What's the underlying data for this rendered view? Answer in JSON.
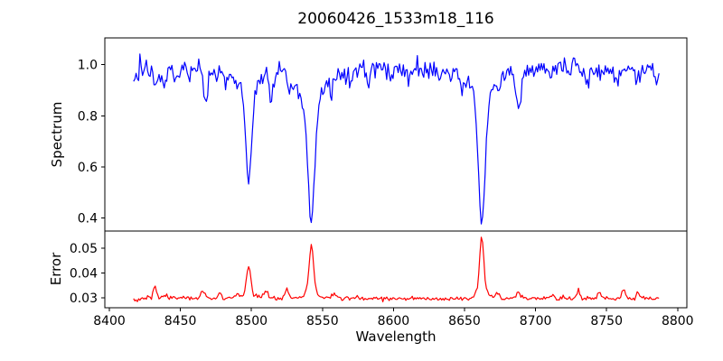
{
  "chart_data": {
    "type": "line",
    "title": "20060426_1533m18_116",
    "xlabel": "Wavelength",
    "xlim": [
      8396.8,
      8806.5
    ],
    "xticks": [
      8400,
      8450,
      8500,
      8550,
      8600,
      8650,
      8700,
      8750,
      8800
    ],
    "xtick_labels": [
      "8400",
      "8450",
      "8500",
      "8550",
      "8600",
      "8650",
      "8700",
      "8750",
      "8800"
    ],
    "x_range": [
      8417,
      8787.5
    ],
    "x_step": 0.9,
    "grid": false,
    "legend": "none",
    "panels": [
      {
        "name": "spectrum",
        "ylabel": "Spectrum",
        "color": "#0000ff",
        "ylim": [
          0.349,
          1.105
        ],
        "yticks": [
          0.4,
          0.6,
          0.8,
          1.0
        ],
        "ytick_labels": [
          "0.4",
          "0.6",
          "0.8",
          "1.0"
        ]
      },
      {
        "name": "error",
        "ylabel": "Error",
        "color": "#ff0000",
        "ylim": [
          0.026,
          0.0569
        ],
        "yticks": [
          0.03,
          0.04,
          0.05
        ],
        "ytick_labels": [
          "0.03",
          "0.04",
          "0.05"
        ]
      }
    ],
    "spectrum": {
      "continuum": 0.985,
      "noise_sigma": 0.02,
      "noise_seed": 20060426,
      "absorption_lines": [
        {
          "center": 8498.0,
          "flux_min": 0.56,
          "depth": 0.328,
          "width": 2.0,
          "wing_depth": 0.1,
          "wing_width": 7
        },
        {
          "center": 8542.1,
          "flux_min": 0.37,
          "depth": 0.492,
          "width": 2.3,
          "wing_depth": 0.12,
          "wing_width": 9
        },
        {
          "center": 8662.1,
          "flux_min": 0.38,
          "depth": 0.486,
          "width": 2.3,
          "wing_depth": 0.12,
          "wing_width": 9
        },
        {
          "center": 8418,
          "depth": 0.05,
          "width": 1.0
        },
        {
          "center": 8427,
          "depth": 0.04,
          "width": 1.2
        },
        {
          "center": 8433,
          "depth": 0.05,
          "width": 1.4
        },
        {
          "center": 8439,
          "depth": 0.06,
          "width": 1.6
        },
        {
          "center": 8447,
          "depth": 0.05,
          "width": 1.3
        },
        {
          "center": 8456,
          "depth": 0.04,
          "width": 1.2
        },
        {
          "center": 8468,
          "depth": 0.11,
          "width": 1.8
        },
        {
          "center": 8476,
          "depth": 0.05,
          "width": 1.3
        },
        {
          "center": 8482,
          "depth": 0.05,
          "width": 1.3
        },
        {
          "center": 8514,
          "depth": 0.09,
          "width": 1.7
        },
        {
          "center": 8527,
          "depth": 0.06,
          "width": 1.5
        },
        {
          "center": 8536,
          "depth": 0.04,
          "width": 1.2
        },
        {
          "center": 8556,
          "depth": 0.04,
          "width": 1.2
        },
        {
          "center": 8570,
          "depth": 0.04,
          "width": 1.3
        },
        {
          "center": 8582,
          "depth": 0.05,
          "width": 1.4
        },
        {
          "center": 8598,
          "depth": 0.04,
          "width": 1.3
        },
        {
          "center": 8611,
          "depth": 0.05,
          "width": 1.4
        },
        {
          "center": 8621,
          "depth": 0.04,
          "width": 1.3
        },
        {
          "center": 8632,
          "depth": 0.04,
          "width": 1.2
        },
        {
          "center": 8648,
          "depth": 0.04,
          "width": 1.2
        },
        {
          "center": 8674,
          "depth": 0.04,
          "width": 1.2
        },
        {
          "center": 8688,
          "depth": 0.14,
          "width": 2.0
        },
        {
          "center": 8699,
          "depth": 0.04,
          "width": 1.2
        },
        {
          "center": 8710,
          "depth": 0.04,
          "width": 1.3
        },
        {
          "center": 8736,
          "depth": 0.05,
          "width": 1.3
        },
        {
          "center": 8747,
          "depth": 0.04,
          "width": 1.2
        },
        {
          "center": 8757,
          "depth": 0.05,
          "width": 1.3
        },
        {
          "center": 8772,
          "depth": 0.04,
          "width": 1.2
        },
        {
          "center": 8785,
          "depth": 0.06,
          "width": 1.2
        }
      ]
    },
    "error": {
      "baseline": 0.0298,
      "noise_sigma": 0.00045,
      "noise_seed": 1533,
      "peaks": [
        {
          "center": 8419,
          "amp": -0.0008,
          "width": 2.0
        },
        {
          "center": 8432,
          "amp": 0.0048,
          "width": 1.3
        },
        {
          "center": 8440,
          "amp": 0.0018,
          "width": 1.2
        },
        {
          "center": 8466,
          "amp": 0.0033,
          "width": 1.4
        },
        {
          "center": 8478,
          "amp": 0.002,
          "width": 1.2
        },
        {
          "center": 8490,
          "amp": 0.0014,
          "width": 1.2
        },
        {
          "center": 8498.0,
          "amp": 0.0108,
          "width": 1.5
        },
        {
          "center": 8498.0,
          "amp": 0.0018,
          "width": 4.0
        },
        {
          "center": 8510,
          "amp": 0.0033,
          "width": 1.3
        },
        {
          "center": 8525,
          "amp": 0.0036,
          "width": 1.3
        },
        {
          "center": 8542.1,
          "amp": 0.0185,
          "width": 1.5
        },
        {
          "center": 8542.1,
          "amp": 0.003,
          "width": 4.0
        },
        {
          "center": 8558,
          "amp": 0.0014,
          "width": 1.5
        },
        {
          "center": 8662.1,
          "amp": 0.0215,
          "width": 1.4
        },
        {
          "center": 8662.1,
          "amp": 0.0032,
          "width": 4.0
        },
        {
          "center": 8673,
          "amp": 0.0018,
          "width": 1.5
        },
        {
          "center": 8688,
          "amp": 0.0022,
          "width": 1.5
        },
        {
          "center": 8712,
          "amp": 0.0014,
          "width": 1.2
        },
        {
          "center": 8730,
          "amp": 0.0026,
          "width": 1.2
        },
        {
          "center": 8745,
          "amp": 0.0026,
          "width": 1.2
        },
        {
          "center": 8762,
          "amp": 0.0036,
          "width": 1.2
        },
        {
          "center": 8772,
          "amp": 0.0024,
          "width": 1.2
        }
      ]
    }
  }
}
